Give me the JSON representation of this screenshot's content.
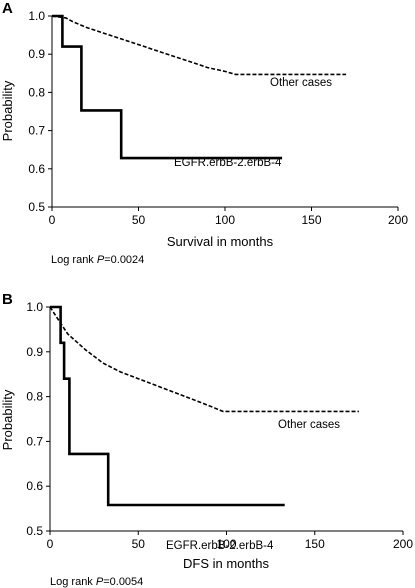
{
  "chart_data": [
    {
      "panel_label": "A",
      "type": "line",
      "subtype": "kaplan-meier step",
      "xlabel": "Survival in months",
      "ylabel": "Probability",
      "xlim": [
        0,
        200
      ],
      "ylim": [
        0.5,
        1.0
      ],
      "x_ticks": [
        "0",
        "50",
        "100",
        "150",
        "200"
      ],
      "y_ticks": [
        "0.5",
        "0.6",
        "0.7",
        "0.8",
        "0.9",
        "1.0"
      ],
      "grid": false,
      "footnote_prefix": "Log rank ",
      "footnote_p": "P",
      "footnote_suffix": "=0.0024",
      "series": [
        {
          "name": "Other cases",
          "style": "dashed-thin",
          "color": "#000000",
          "x": [
            0,
            8,
            12,
            20,
            30,
            40,
            50,
            60,
            70,
            80,
            90,
            100,
            106,
            170
          ],
          "y": [
            1.0,
            0.995,
            0.985,
            0.97,
            0.955,
            0.94,
            0.925,
            0.91,
            0.895,
            0.88,
            0.865,
            0.855,
            0.847,
            0.847
          ]
        },
        {
          "name": "EGFR.erbB-2.erbB-4",
          "style": "solid-thick",
          "color": "#000000",
          "x": [
            0,
            6,
            17,
            40,
            133
          ],
          "y": [
            1.0,
            0.92,
            0.753,
            0.628,
            0.628
          ]
        }
      ]
    },
    {
      "panel_label": "B",
      "type": "line",
      "subtype": "kaplan-meier step",
      "xlabel": "DFS in months",
      "ylabel": "Probability",
      "xlim": [
        0,
        200
      ],
      "ylim": [
        0.5,
        1.0
      ],
      "x_ticks": [
        "0",
        "50",
        "100",
        "150",
        "200"
      ],
      "y_ticks": [
        "0.5",
        "0.6",
        "0.7",
        "0.8",
        "0.9",
        "1.0"
      ],
      "grid": false,
      "footnote_prefix": "Log rank ",
      "footnote_p": "P",
      "footnote_suffix": "=0.0054",
      "series": [
        {
          "name": "Other cases",
          "style": "dashed-thin",
          "color": "#000000",
          "x": [
            0,
            5,
            10,
            20,
            30,
            40,
            50,
            60,
            70,
            80,
            90,
            98,
            175
          ],
          "y": [
            1.0,
            0.97,
            0.94,
            0.905,
            0.875,
            0.855,
            0.84,
            0.825,
            0.81,
            0.795,
            0.78,
            0.767,
            0.767
          ]
        },
        {
          "name": "EGFR.erbB-2.erbB-4",
          "style": "solid-thick",
          "color": "#000000",
          "x": [
            0,
            6,
            8,
            11,
            33,
            133
          ],
          "y": [
            1.0,
            0.92,
            0.84,
            0.672,
            0.558,
            0.558
          ]
        }
      ]
    }
  ]
}
